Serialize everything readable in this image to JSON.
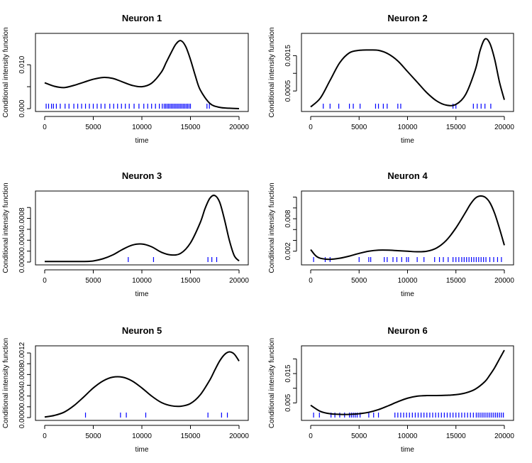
{
  "figure": {
    "background": "#ffffff",
    "curve_color": "#000000",
    "spike_color": "#0000ff"
  },
  "chart_data": [
    {
      "type": "line",
      "title": "Neuron 1",
      "xlabel": "time",
      "ylabel": "Conditional intensity function",
      "xlim": [
        0,
        20000
      ],
      "ylim": [
        0,
        0.0165
      ],
      "x_ticks": [
        0,
        5000,
        10000,
        15000,
        20000
      ],
      "y_ticks": [
        0.0,
        0.005,
        0.01
      ],
      "y_tick_labels": [
        "0.000",
        "",
        "0.010"
      ],
      "grid": false,
      "series": [
        {
          "x": [
            0,
            1000,
            2000,
            3000,
            4000,
            5000,
            6000,
            7000,
            8000,
            9000,
            10000,
            11000,
            12000,
            12500,
            13000,
            13500,
            14000,
            14500,
            15000,
            15500,
            16000,
            17000,
            18000,
            19000,
            20000
          ],
          "y": [
            0.0059,
            0.0051,
            0.0048,
            0.0053,
            0.006,
            0.0067,
            0.0071,
            0.0069,
            0.0061,
            0.0053,
            0.005,
            0.0058,
            0.0083,
            0.0105,
            0.0127,
            0.0147,
            0.0155,
            0.0142,
            0.0112,
            0.0075,
            0.0043,
            0.0012,
            0.0003,
            0.0001,
            0.0
          ]
        }
      ],
      "spikes": [
        150,
        400,
        700,
        900,
        1200,
        1600,
        2100,
        2500,
        3000,
        3400,
        3800,
        4200,
        4600,
        5000,
        5400,
        5800,
        6200,
        6700,
        7100,
        7500,
        7900,
        8300,
        8700,
        9200,
        9700,
        10200,
        10600,
        11000,
        11400,
        11800,
        12100,
        12300,
        12450,
        12600,
        12750,
        12900,
        13050,
        13200,
        13350,
        13500,
        13650,
        13800,
        13950,
        14100,
        14250,
        14400,
        14550,
        14700,
        14850,
        15000,
        16700,
        16950
      ]
    },
    {
      "type": "line",
      "title": "Neuron 2",
      "xlabel": "time",
      "ylabel": "Conditional intensity function",
      "xlim": [
        0,
        20000
      ],
      "ylim": [
        0,
        0.00205
      ],
      "x_ticks": [
        0,
        5000,
        10000,
        15000,
        20000
      ],
      "y_ticks": [
        0.0005,
        0.001,
        0.0015
      ],
      "y_tick_labels": [
        "0.0005",
        "",
        "0.0015"
      ],
      "grid": false,
      "series": [
        {
          "x": [
            0,
            1000,
            2000,
            3000,
            4000,
            5000,
            6000,
            7000,
            8000,
            9000,
            10000,
            11000,
            12000,
            13000,
            14000,
            15000,
            16000,
            17000,
            17500,
            18000,
            18500,
            19000,
            19500,
            20000
          ],
          "y": [
            5e-05,
            0.0003,
            0.0008,
            0.0013,
            0.00158,
            0.00165,
            0.00166,
            0.00165,
            0.00155,
            0.00135,
            0.00105,
            0.00075,
            0.00045,
            0.00022,
            0.0001,
            0.00012,
            0.0004,
            0.0011,
            0.00165,
            0.00197,
            0.00185,
            0.0014,
            0.00075,
            0.00025
          ]
        }
      ],
      "spikes": [
        1300,
        2000,
        2900,
        4000,
        4400,
        5100,
        6700,
        7000,
        7500,
        7900,
        9000,
        9300,
        14700,
        15000,
        16800,
        17200,
        17600,
        18000,
        18600
      ]
    },
    {
      "type": "line",
      "title": "Neuron 3",
      "xlabel": "time",
      "ylabel": "Conditional intensity function",
      "xlim": [
        0,
        20000
      ],
      "ylim": [
        0,
        0.00125
      ],
      "x_ticks": [
        0,
        5000,
        10000,
        15000,
        20000
      ],
      "y_ticks": [
        0.0,
        0.0002,
        0.0004,
        0.0006,
        0.0008,
        0.001
      ],
      "y_tick_labels": [
        "0.0000",
        "",
        "0.0004",
        "",
        "0.0008",
        ""
      ],
      "grid": false,
      "series": [
        {
          "x": [
            0,
            2000,
            4000,
            5000,
            6000,
            7000,
            8000,
            9000,
            10000,
            11000,
            12000,
            13000,
            14000,
            15000,
            16000,
            16500,
            17000,
            17500,
            18000,
            18500,
            19000,
            19500,
            20000
          ],
          "y": [
            1e-05,
            1e-05,
            1e-05,
            2e-05,
            6e-05,
            0.00013,
            0.00023,
            0.00031,
            0.00033,
            0.00028,
            0.00018,
            0.00013,
            0.00016,
            0.00035,
            0.00072,
            0.00098,
            0.00117,
            0.00122,
            0.0011,
            0.00078,
            0.0004,
            0.00012,
            2e-05
          ]
        }
      ],
      "spikes": [
        8600,
        11200,
        16800,
        17200,
        17700
      ]
    },
    {
      "type": "line",
      "title": "Neuron 4",
      "xlabel": "time",
      "ylabel": "Conditional intensity function",
      "xlim": [
        0,
        20000
      ],
      "ylim": [
        0,
        0.0126
      ],
      "x_ticks": [
        0,
        5000,
        10000,
        15000,
        20000
      ],
      "y_ticks": [
        0.002,
        0.004,
        0.006,
        0.008,
        0.01,
        0.012
      ],
      "y_tick_labels": [
        "0.002",
        "",
        "",
        "0.008",
        "",
        ""
      ],
      "grid": false,
      "series": [
        {
          "x": [
            0,
            500,
            1000,
            2000,
            3000,
            4000,
            5000,
            6000,
            7000,
            8000,
            9000,
            10000,
            11000,
            12000,
            13000,
            14000,
            15000,
            16000,
            16500,
            17000,
            17500,
            18000,
            18500,
            19000,
            19500,
            20000
          ],
          "y": [
            0.0023,
            0.0012,
            0.0007,
            0.0005,
            0.0007,
            0.0011,
            0.0016,
            0.002,
            0.0022,
            0.0022,
            0.0021,
            0.002,
            0.0019,
            0.002,
            0.0026,
            0.004,
            0.0063,
            0.0092,
            0.0107,
            0.0118,
            0.0122,
            0.012,
            0.011,
            0.009,
            0.0062,
            0.0031
          ]
        }
      ],
      "spikes": [
        300,
        1500,
        2000,
        5000,
        6000,
        6200,
        7600,
        7900,
        8500,
        8900,
        9400,
        9900,
        10100,
        11000,
        11700,
        12800,
        13300,
        13700,
        14200,
        14700,
        15000,
        15300,
        15600,
        15850,
        16100,
        16350,
        16600,
        16850,
        17100,
        17350,
        17600,
        17850,
        18100,
        18500,
        18900,
        19300,
        19700
      ]
    },
    {
      "type": "line",
      "title": "Neuron 5",
      "xlabel": "time",
      "ylabel": "Conditional intensity function",
      "xlim": [
        0,
        20000
      ],
      "ylim": [
        0,
        0.00128
      ],
      "x_ticks": [
        0,
        5000,
        10000,
        15000,
        20000
      ],
      "y_ticks": [
        0.0,
        0.0002,
        0.0004,
        0.0006,
        0.0008,
        0.001,
        0.0012
      ],
      "y_tick_labels": [
        "0.0000",
        "",
        "0.0004",
        "",
        "0.0008",
        "",
        "0.0012"
      ],
      "grid": false,
      "series": [
        {
          "x": [
            0,
            1000,
            2000,
            3000,
            4000,
            5000,
            6000,
            7000,
            8000,
            9000,
            10000,
            11000,
            12000,
            13000,
            14000,
            15000,
            16000,
            17000,
            17500,
            18000,
            18500,
            19000,
            19500,
            20000
          ],
          "y": [
            1e-05,
            4e-05,
            0.0001,
            0.00022,
            0.00038,
            0.00055,
            0.00068,
            0.00075,
            0.00075,
            0.00068,
            0.00055,
            0.0004,
            0.00028,
            0.00022,
            0.00021,
            0.00026,
            0.00042,
            0.0007,
            0.00088,
            0.00105,
            0.00117,
            0.00122,
            0.00118,
            0.00105
          ]
        }
      ],
      "spikes": [
        4200,
        7800,
        8400,
        10400,
        16800,
        18200,
        18800
      ]
    },
    {
      "type": "line",
      "title": "Neuron 6",
      "xlabel": "time",
      "ylabel": "Conditional intensity function",
      "xlim": [
        0,
        20000
      ],
      "ylim": [
        0,
        0.0235
      ],
      "x_ticks": [
        0,
        5000,
        10000,
        15000,
        20000
      ],
      "y_ticks": [
        0.005,
        0.01,
        0.015,
        0.02
      ],
      "y_tick_labels": [
        "0.005",
        "",
        "0.015",
        ""
      ],
      "grid": false,
      "series": [
        {
          "x": [
            0,
            1000,
            2000,
            3000,
            4000,
            5000,
            6000,
            7000,
            8000,
            9000,
            10000,
            11000,
            12000,
            13000,
            14000,
            15000,
            16000,
            17000,
            18000,
            18500,
            19000,
            19500,
            20000
          ],
          "y": [
            0.0042,
            0.0021,
            0.0013,
            0.0011,
            0.0011,
            0.0013,
            0.0018,
            0.0027,
            0.004,
            0.0054,
            0.0066,
            0.0073,
            0.0075,
            0.0075,
            0.0076,
            0.0078,
            0.0084,
            0.0097,
            0.0123,
            0.0145,
            0.017,
            0.02,
            0.023
          ]
        }
      ],
      "spikes": [
        300,
        900,
        2100,
        2500,
        3000,
        3500,
        4000,
        4200,
        4400,
        4600,
        4800,
        5100,
        6000,
        6500,
        7000,
        8700,
        9000,
        9300,
        9600,
        9900,
        10200,
        10500,
        10800,
        11100,
        11400,
        11700,
        12000,
        12300,
        12600,
        12900,
        13200,
        13500,
        13800,
        14100,
        14400,
        14700,
        15000,
        15300,
        15600,
        15900,
        16200,
        16500,
        16800,
        17100,
        17300,
        17500,
        17700,
        17900,
        18100,
        18300,
        18500,
        18700,
        18900,
        19100,
        19300,
        19500,
        19700,
        19900
      ]
    }
  ]
}
